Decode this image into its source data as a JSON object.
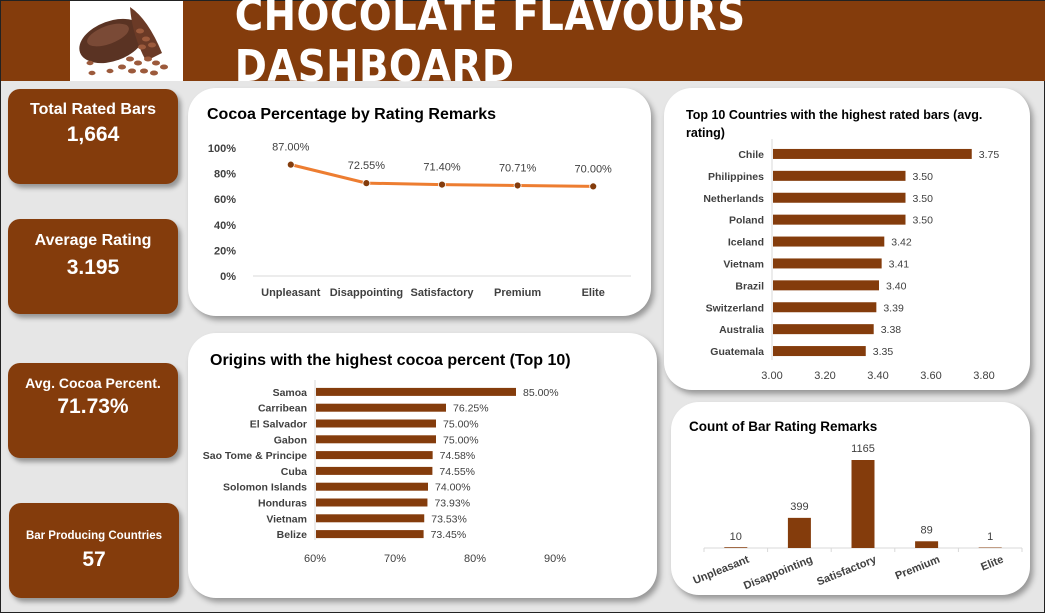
{
  "header": {
    "title": "CHOCOLATE FLAVOURS DASHBOARD",
    "logo_icon": "cocoa-pod-icon",
    "brand_color": "#843c0c"
  },
  "kpis": [
    {
      "label": "Total Rated Bars",
      "value": "1,664"
    },
    {
      "label": "Average Rating",
      "value": "3.195"
    },
    {
      "label": "Avg. Cocoa Percent.",
      "value": "71.73%"
    },
    {
      "label": "Bar Producing Countries",
      "value": "57"
    }
  ],
  "charts": {
    "cocoa_by_rating": {
      "title": "Cocoa Percentage by Rating Remarks"
    },
    "origins": {
      "title": "Origins with the highest cocoa percent (Top 10)"
    },
    "countries": {
      "title": "Top 10 Countries with the highest rated bars (avg. rating)"
    },
    "remarks_count": {
      "title": "Count of Bar Rating Remarks"
    }
  },
  "chart_data": [
    {
      "type": "line",
      "title": "Cocoa Percentage by Rating Remarks",
      "categories": [
        "Unpleasant",
        "Disappointing",
        "Satisfactory",
        "Premium",
        "Elite"
      ],
      "values": [
        87.0,
        72.55,
        71.4,
        70.71,
        70.0
      ],
      "value_labels": [
        "87.00%",
        "72.55%",
        "71.40%",
        "70.71%",
        "70.00%"
      ],
      "yticks": [
        "0%",
        "20%",
        "40%",
        "60%",
        "80%",
        "100%"
      ],
      "ylim": [
        0,
        100
      ],
      "line_color": "#ed7d31",
      "marker_color": "#843c0c",
      "grid": false
    },
    {
      "type": "bar",
      "orientation": "horizontal",
      "title": "Origins with the highest cocoa percent (Top 10)",
      "categories": [
        "Samoa",
        "Carribean",
        "El Salvador",
        "Gabon",
        "Sao Tome & Principe",
        "Cuba",
        "Solomon Islands",
        "Honduras",
        "Vietnam",
        "Belize"
      ],
      "values": [
        85.0,
        76.25,
        75.0,
        75.0,
        74.58,
        74.55,
        74.0,
        73.93,
        73.53,
        73.45
      ],
      "value_labels": [
        "85.00%",
        "76.25%",
        "75.00%",
        "75.00%",
        "74.58%",
        "74.55%",
        "74.00%",
        "73.93%",
        "73.53%",
        "73.45%"
      ],
      "xticks": [
        "60%",
        "70%",
        "80%",
        "90%"
      ],
      "xlim": [
        60,
        90
      ],
      "bar_color": "#843c0c"
    },
    {
      "type": "bar",
      "orientation": "horizontal",
      "title": "Top 10 Countries with the highest rated bars (avg. rating)",
      "categories": [
        "Chile",
        "Philippines",
        "Netherlands",
        "Poland",
        "Iceland",
        "Vietnam",
        "Brazil",
        "Switzerland",
        "Australia",
        "Guatemala"
      ],
      "values": [
        3.75,
        3.5,
        3.5,
        3.5,
        3.42,
        3.41,
        3.4,
        3.39,
        3.38,
        3.35
      ],
      "value_labels": [
        "3.75",
        "3.50",
        "3.50",
        "3.50",
        "3.42",
        "3.41",
        "3.40",
        "3.39",
        "3.38",
        "3.35"
      ],
      "xticks": [
        "3.00",
        "3.20",
        "3.40",
        "3.60",
        "3.80"
      ],
      "xlim": [
        3.0,
        3.8
      ],
      "bar_color": "#843c0c"
    },
    {
      "type": "bar",
      "orientation": "vertical",
      "title": "Count of Bar Rating Remarks",
      "categories": [
        "Unpleasant",
        "Disappointing",
        "Satisfactory",
        "Premium",
        "Elite"
      ],
      "values": [
        10,
        399,
        1165,
        89,
        1
      ],
      "value_labels": [
        "10",
        "399",
        "1165",
        "89",
        "1"
      ],
      "ylim": [
        0,
        1165
      ],
      "bar_color": "#843c0c"
    }
  ]
}
